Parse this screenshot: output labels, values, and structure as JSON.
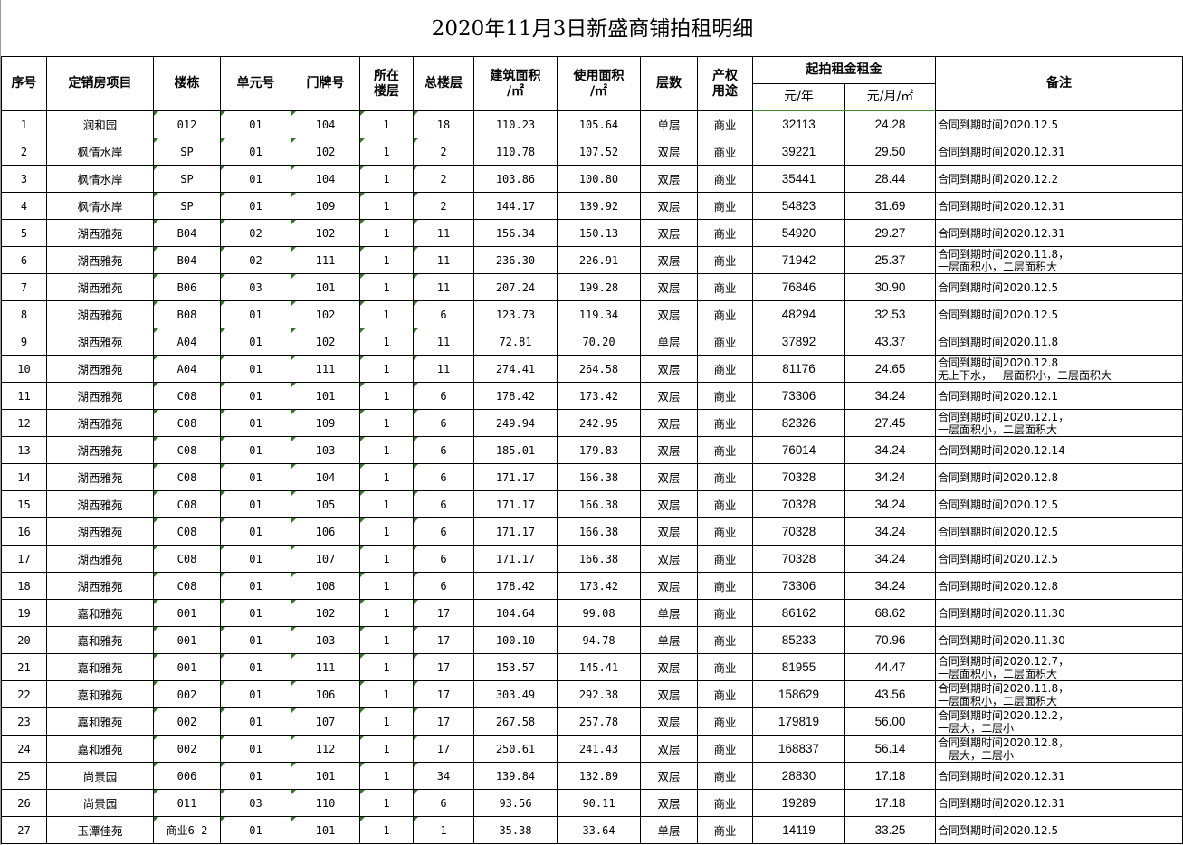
{
  "title": "2020年11月3日新盛商铺拍租明细",
  "headers": {
    "seq": "序号",
    "project": "定销房项目",
    "building": "楼栋",
    "unit": "单元号",
    "door": "门牌号",
    "floor": "所在\n楼层",
    "total_floors": "总楼层",
    "build_area": "建筑面积\n/㎡",
    "use_area": "使用面积\n/㎡",
    "levels": "层数",
    "usage": "产权\n用途",
    "rent_group": "起拍租金租金",
    "rent_year": "元/年",
    "rent_month": "元/月/㎡",
    "notes": "备注"
  },
  "rows": [
    [
      "1",
      "润和园",
      "012",
      "01",
      "104",
      "1",
      "18",
      "110.23",
      "105.64",
      "单层",
      "商业",
      "32113",
      "24.28",
      "合同到期时间2020.12.5"
    ],
    [
      "2",
      "枫情水岸",
      "SP",
      "01",
      "102",
      "1",
      "2",
      "110.78",
      "107.52",
      "双层",
      "商业",
      "39221",
      "29.50",
      "合同到期时间2020.12.31"
    ],
    [
      "3",
      "枫情水岸",
      "SP",
      "01",
      "104",
      "1",
      "2",
      "103.86",
      "100.80",
      "双层",
      "商业",
      "35441",
      "28.44",
      "合同到期时间2020.12.2"
    ],
    [
      "4",
      "枫情水岸",
      "SP",
      "01",
      "109",
      "1",
      "2",
      "144.17",
      "139.92",
      "双层",
      "商业",
      "54823",
      "31.69",
      "合同到期时间2020.12.31"
    ],
    [
      "5",
      "湖西雅苑",
      "B04",
      "02",
      "102",
      "1",
      "11",
      "156.34",
      "150.13",
      "双层",
      "商业",
      "54920",
      "29.27",
      "合同到期时间2020.12.31"
    ],
    [
      "6",
      "湖西雅苑",
      "B04",
      "02",
      "111",
      "1",
      "11",
      "236.30",
      "226.91",
      "双层",
      "商业",
      "71942",
      "25.37",
      "合同到期时间2020.11.8，\n一层面积小，二层面积大"
    ],
    [
      "7",
      "湖西雅苑",
      "B06",
      "03",
      "101",
      "1",
      "11",
      "207.24",
      "199.28",
      "双层",
      "商业",
      "76846",
      "30.90",
      "合同到期时间2020.12.5"
    ],
    [
      "8",
      "湖西雅苑",
      "B08",
      "01",
      "102",
      "1",
      "6",
      "123.73",
      "119.34",
      "双层",
      "商业",
      "48294",
      "32.53",
      "合同到期时间2020.12.5"
    ],
    [
      "9",
      "湖西雅苑",
      "A04",
      "01",
      "102",
      "1",
      "11",
      "72.81",
      "70.20",
      "单层",
      "商业",
      "37892",
      "43.37",
      "合同到期时间2020.11.8"
    ],
    [
      "10",
      "湖西雅苑",
      "A04",
      "01",
      "111",
      "1",
      "11",
      "274.41",
      "264.58",
      "双层",
      "商业",
      "81176",
      "24.65",
      "合同到期时间2020.12.8\n无上下水，一层面积小，二层面积大"
    ],
    [
      "11",
      "湖西雅苑",
      "C08",
      "01",
      "101",
      "1",
      "6",
      "178.42",
      "173.42",
      "双层",
      "商业",
      "73306",
      "34.24",
      "合同到期时间2020.12.1"
    ],
    [
      "12",
      "湖西雅苑",
      "C08",
      "01",
      "109",
      "1",
      "6",
      "249.94",
      "242.95",
      "双层",
      "商业",
      "82326",
      "27.45",
      "合同到期时间2020.12.1，\n一层面积小，二层面积大"
    ],
    [
      "13",
      "湖西雅苑",
      "C08",
      "01",
      "103",
      "1",
      "6",
      "185.01",
      "179.83",
      "双层",
      "商业",
      "76014",
      "34.24",
      "合同到期时间2020.12.14"
    ],
    [
      "14",
      "湖西雅苑",
      "C08",
      "01",
      "104",
      "1",
      "6",
      "171.17",
      "166.38",
      "双层",
      "商业",
      "70328",
      "34.24",
      "合同到期时间2020.12.8"
    ],
    [
      "15",
      "湖西雅苑",
      "C08",
      "01",
      "105",
      "1",
      "6",
      "171.17",
      "166.38",
      "双层",
      "商业",
      "70328",
      "34.24",
      "合同到期时间2020.12.5"
    ],
    [
      "16",
      "湖西雅苑",
      "C08",
      "01",
      "106",
      "1",
      "6",
      "171.17",
      "166.38",
      "双层",
      "商业",
      "70328",
      "34.24",
      "合同到期时间2020.12.5"
    ],
    [
      "17",
      "湖西雅苑",
      "C08",
      "01",
      "107",
      "1",
      "6",
      "171.17",
      "166.38",
      "双层",
      "商业",
      "70328",
      "34.24",
      "合同到期时间2020.12.5"
    ],
    [
      "18",
      "湖西雅苑",
      "C08",
      "01",
      "108",
      "1",
      "6",
      "178.42",
      "173.42",
      "双层",
      "商业",
      "73306",
      "34.24",
      "合同到期时间2020.12.8"
    ],
    [
      "19",
      "嘉和雅苑",
      "001",
      "01",
      "102",
      "1",
      "17",
      "104.64",
      "99.08",
      "单层",
      "商业",
      "86162",
      "68.62",
      "合同到期时间2020.11.30"
    ],
    [
      "20",
      "嘉和雅苑",
      "001",
      "01",
      "103",
      "1",
      "17",
      "100.10",
      "94.78",
      "单层",
      "商业",
      "85233",
      "70.96",
      "合同到期时间2020.11.30"
    ],
    [
      "21",
      "嘉和雅苑",
      "001",
      "01",
      "111",
      "1",
      "17",
      "153.57",
      "145.41",
      "双层",
      "商业",
      "81955",
      "44.47",
      "合同到期时间2020.12.7，\n一层面积小，二层面积大"
    ],
    [
      "22",
      "嘉和雅苑",
      "002",
      "01",
      "106",
      "1",
      "17",
      "303.49",
      "292.38",
      "双层",
      "商业",
      "158629",
      "43.56",
      "合同到期时间2020.11.8，\n一层面积小，二层面积大"
    ],
    [
      "23",
      "嘉和雅苑",
      "002",
      "01",
      "107",
      "1",
      "17",
      "267.58",
      "257.78",
      "双层",
      "商业",
      "179819",
      "56.00",
      "合同到期时间2020.12.2，\n一层大，二层小"
    ],
    [
      "24",
      "嘉和雅苑",
      "002",
      "01",
      "112",
      "1",
      "17",
      "250.61",
      "241.43",
      "双层",
      "商业",
      "168837",
      "56.14",
      "合同到期时间2020.12.8，\n一层大，二层小"
    ],
    [
      "25",
      "尚景园",
      "006",
      "01",
      "101",
      "1",
      "34",
      "139.84",
      "132.89",
      "双层",
      "商业",
      "28830",
      "17.18",
      "合同到期时间2020.12.31"
    ],
    [
      "26",
      "尚景园",
      "011",
      "03",
      "110",
      "1",
      "6",
      "93.56",
      "90.11",
      "双层",
      "商业",
      "19289",
      "17.18",
      "合同到期时间2020.12.31"
    ],
    [
      "27",
      "玉潭佳苑",
      "商业6-2",
      "01",
      "101",
      "1",
      "1",
      "35.38",
      "33.64",
      "单层",
      "商业",
      "14119",
      "33.25",
      "合同到期时间2020.12.5"
    ]
  ]
}
